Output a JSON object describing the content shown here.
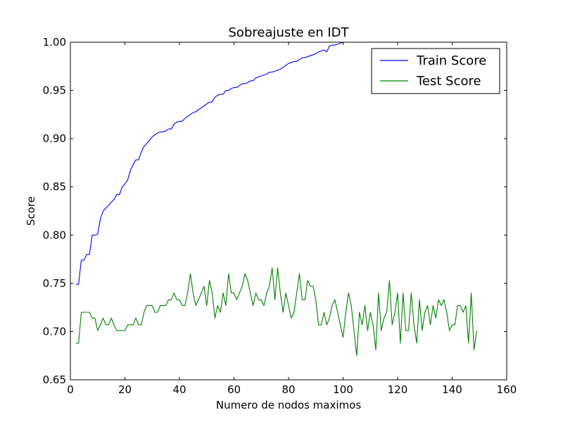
{
  "chart_data": {
    "type": "line",
    "title": "Sobreajuste en IDT",
    "xlabel": "Numero de nodos maximos",
    "ylabel": "Score",
    "xlim": [
      0,
      160
    ],
    "ylim": [
      0.65,
      1.0
    ],
    "xticks": [
      0,
      20,
      40,
      60,
      80,
      100,
      120,
      140,
      160
    ],
    "xtick_labels": [
      "0",
      "20",
      "40",
      "60",
      "80",
      "100",
      "120",
      "140",
      "160"
    ],
    "yticks": [
      0.65,
      0.7,
      0.75,
      0.8,
      0.85,
      0.9,
      0.95,
      1.0
    ],
    "ytick_labels": [
      "0.65",
      "0.70",
      "0.75",
      "0.80",
      "0.85",
      "0.90",
      "0.95",
      "1.00"
    ],
    "grid": false,
    "legend_position": "top-right",
    "series": [
      {
        "name": "Train Score",
        "color": "#0000ff",
        "x": [
          2,
          3,
          4,
          5,
          6,
          7,
          8,
          9,
          10,
          11,
          12,
          13,
          14,
          15,
          16,
          17,
          18,
          19,
          20,
          21,
          22,
          23,
          24,
          25,
          26,
          27,
          28,
          29,
          30,
          31,
          32,
          33,
          34,
          35,
          36,
          37,
          38,
          39,
          40,
          41,
          42,
          43,
          44,
          45,
          46,
          47,
          48,
          49,
          50,
          51,
          52,
          53,
          54,
          55,
          56,
          57,
          58,
          59,
          60,
          61,
          62,
          63,
          64,
          65,
          66,
          67,
          68,
          69,
          70,
          71,
          72,
          73,
          74,
          75,
          76,
          77,
          78,
          79,
          80,
          81,
          82,
          83,
          84,
          85,
          86,
          87,
          88,
          89,
          90,
          91,
          92,
          93,
          94,
          95,
          96,
          97,
          98,
          99,
          100,
          101,
          102
        ],
        "values": [
          0.749,
          0.749,
          0.774,
          0.774,
          0.78,
          0.78,
          0.8,
          0.8,
          0.801,
          0.817,
          0.825,
          0.828,
          0.831,
          0.834,
          0.837,
          0.842,
          0.842,
          0.85,
          0.853,
          0.857,
          0.867,
          0.873,
          0.878,
          0.878,
          0.886,
          0.892,
          0.895,
          0.898,
          0.902,
          0.904,
          0.906,
          0.907,
          0.907,
          0.908,
          0.91,
          0.91,
          0.915,
          0.917,
          0.918,
          0.918,
          0.921,
          0.923,
          0.925,
          0.927,
          0.928,
          0.93,
          0.932,
          0.934,
          0.936,
          0.938,
          0.938,
          0.943,
          0.945,
          0.946,
          0.946,
          0.95,
          0.95,
          0.952,
          0.953,
          0.953,
          0.955,
          0.957,
          0.957,
          0.958,
          0.96,
          0.96,
          0.963,
          0.964,
          0.965,
          0.966,
          0.967,
          0.969,
          0.969,
          0.97,
          0.971,
          0.972,
          0.974,
          0.976,
          0.978,
          0.979,
          0.98,
          0.98,
          0.982,
          0.984,
          0.984,
          0.985,
          0.986,
          0.987,
          0.988,
          0.99,
          0.991,
          0.992,
          0.99,
          0.996,
          0.997,
          0.997,
          0.998,
          0.999,
          1.0,
          1.0,
          1.0
        ]
      },
      {
        "name": "Test Score",
        "color": "#008000",
        "x": [
          2,
          3,
          4,
          5,
          6,
          7,
          8,
          9,
          10,
          11,
          12,
          13,
          14,
          15,
          16,
          17,
          18,
          19,
          20,
          21,
          22,
          23,
          24,
          25,
          26,
          27,
          28,
          29,
          30,
          31,
          32,
          33,
          34,
          35,
          36,
          37,
          38,
          39,
          40,
          41,
          42,
          43,
          44,
          45,
          46,
          47,
          48,
          49,
          50,
          51,
          52,
          53,
          54,
          55,
          56,
          57,
          58,
          59,
          60,
          61,
          62,
          63,
          64,
          65,
          66,
          67,
          68,
          69,
          70,
          71,
          72,
          73,
          74,
          75,
          76,
          77,
          78,
          79,
          80,
          81,
          82,
          83,
          84,
          85,
          86,
          87,
          88,
          89,
          90,
          91,
          92,
          93,
          94,
          95,
          96,
          97,
          98,
          99,
          100,
          101,
          102,
          103,
          104,
          105,
          106,
          107,
          108,
          109,
          110,
          111,
          112,
          113,
          114,
          115,
          116,
          117,
          118,
          119,
          120,
          121,
          122,
          123,
          124,
          125,
          126,
          127,
          128,
          129,
          130,
          131,
          132,
          133,
          134,
          135,
          136,
          137,
          138,
          139,
          140,
          141,
          142,
          143,
          144,
          145,
          146,
          147,
          148,
          149
        ],
        "values": [
          0.688,
          0.688,
          0.72,
          0.72,
          0.72,
          0.72,
          0.714,
          0.714,
          0.701,
          0.707,
          0.714,
          0.707,
          0.707,
          0.714,
          0.707,
          0.701,
          0.701,
          0.701,
          0.701,
          0.707,
          0.707,
          0.707,
          0.714,
          0.707,
          0.707,
          0.72,
          0.727,
          0.727,
          0.727,
          0.72,
          0.72,
          0.727,
          0.727,
          0.727,
          0.733,
          0.733,
          0.74,
          0.733,
          0.733,
          0.727,
          0.727,
          0.74,
          0.76,
          0.74,
          0.727,
          0.733,
          0.74,
          0.747,
          0.727,
          0.753,
          0.74,
          0.714,
          0.727,
          0.72,
          0.74,
          0.727,
          0.76,
          0.74,
          0.74,
          0.733,
          0.74,
          0.747,
          0.76,
          0.753,
          0.74,
          0.727,
          0.74,
          0.733,
          0.733,
          0.727,
          0.74,
          0.747,
          0.766,
          0.733,
          0.766,
          0.74,
          0.72,
          0.74,
          0.727,
          0.714,
          0.72,
          0.74,
          0.76,
          0.733,
          0.733,
          0.753,
          0.747,
          0.747,
          0.733,
          0.707,
          0.707,
          0.72,
          0.707,
          0.714,
          0.727,
          0.733,
          0.72,
          0.707,
          0.694,
          0.72,
          0.74,
          0.727,
          0.701,
          0.675,
          0.72,
          0.707,
          0.727,
          0.701,
          0.72,
          0.707,
          0.681,
          0.74,
          0.701,
          0.714,
          0.72,
          0.753,
          0.707,
          0.72,
          0.74,
          0.688,
          0.74,
          0.701,
          0.701,
          0.74,
          0.707,
          0.688,
          0.733,
          0.701,
          0.72,
          0.727,
          0.707,
          0.727,
          0.714,
          0.733,
          0.727,
          0.733,
          0.72,
          0.701,
          0.707,
          0.707,
          0.727,
          0.727,
          0.72,
          0.727,
          0.688,
          0.74,
          0.681,
          0.701
        ]
      }
    ]
  }
}
